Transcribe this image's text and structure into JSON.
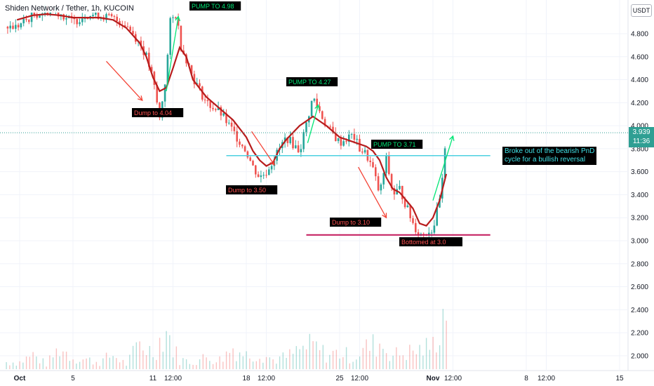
{
  "header": {
    "symbol_title": "Shiden Network / Tether, 1h, KUCOIN"
  },
  "axis": {
    "currency": "USDT"
  },
  "last_price": {
    "value": "3.939",
    "countdown": "11:36"
  },
  "colors": {
    "up": "#26a69a",
    "down": "#ef5350",
    "ma": "#b71c1c",
    "hline_breakout": "#4dd0e1",
    "hline_bottom": "#c2185b",
    "pump_text": "#00e676",
    "dump_text": "#ff5252",
    "last_price": "#2f9f93"
  },
  "annotations": {
    "pump1": "PUMP TO 4.98",
    "pump2": "PUMP TO 4.27",
    "pump3": "PUMP TO 3.71",
    "dump1": "Dump to 4.04",
    "dump2": "Dump to 3.50",
    "dump3": "Dump to 3.10",
    "bottom": "Bottomed at 3.0",
    "breakout_note": "Broke out of the bearish PnD\ncycle for a bullish reversal"
  },
  "chart_data": {
    "type": "line",
    "title": "Shiden Network / Tether, 1h, KUCOIN",
    "ylabel": "USDT",
    "ylim": [
      1.92,
      5.1
    ],
    "y_ticks": [
      "4.800",
      "4.600",
      "4.400",
      "4.200",
      "4.000",
      "3.800",
      "3.600",
      "3.400",
      "3.200",
      "3.000",
      "2.800",
      "2.600",
      "2.400",
      "2.200",
      "2.000"
    ],
    "x_ticks": [
      "Oct",
      "5",
      "11",
      "12:00",
      "18",
      "12:00",
      "25",
      "12:00",
      "Nov",
      "12:00",
      "8",
      "12:00",
      "15"
    ],
    "x_tick_days": [
      0,
      4,
      10,
      11.5,
      17,
      18.5,
      24,
      25.5,
      31,
      32.5,
      38,
      39.5,
      45
    ],
    "series": [
      {
        "kind": "close",
        "x_day": [
          -0.2,
          1,
          2,
          3,
          4,
          5,
          6,
          7,
          8,
          9,
          9.5,
          10,
          10.5,
          11,
          11.3,
          11.8,
          12,
          12.5,
          13,
          14,
          15,
          16,
          17,
          17.5,
          18,
          18.5,
          19,
          19.5,
          20,
          21,
          22,
          23,
          24,
          25,
          25.5,
          26,
          26.5,
          27,
          27.5,
          28,
          28.5,
          29,
          29.5,
          30,
          30.5,
          31,
          31.5,
          31.8,
          32
        ],
        "values": [
          4.86,
          4.96,
          5.0,
          4.98,
          4.9,
          4.97,
          4.96,
          4.93,
          4.88,
          4.72,
          4.6,
          4.4,
          4.06,
          4.46,
          4.9,
          4.98,
          4.72,
          4.58,
          4.42,
          4.2,
          4.12,
          3.95,
          3.78,
          3.64,
          3.55,
          3.6,
          3.7,
          3.8,
          3.9,
          3.78,
          4.25,
          4.0,
          3.85,
          3.92,
          3.8,
          3.75,
          3.62,
          3.4,
          3.71,
          3.4,
          3.45,
          3.3,
          3.15,
          3.05,
          3.08,
          3.1,
          3.35,
          3.6,
          3.94
        ]
      },
      {
        "kind": "moving_average",
        "x_day": [
          -0.2,
          1,
          2,
          3,
          4,
          5,
          6,
          7,
          8,
          9,
          9.5,
          10,
          10.5,
          11,
          11.5,
          12,
          12.5,
          13,
          14,
          15,
          16,
          17,
          17.5,
          18,
          18.5,
          19,
          19.5,
          20,
          21,
          22,
          23,
          24,
          25,
          26,
          26.5,
          27,
          27.5,
          28,
          28.5,
          29,
          29.5,
          30,
          30.5,
          31,
          31.5,
          32
        ],
        "values": [
          4.92,
          4.96,
          4.97,
          4.96,
          4.94,
          4.94,
          4.94,
          4.92,
          4.85,
          4.72,
          4.6,
          4.42,
          4.3,
          4.33,
          4.5,
          4.68,
          4.6,
          4.4,
          4.25,
          4.15,
          4.05,
          3.9,
          3.78,
          3.7,
          3.65,
          3.68,
          3.8,
          3.88,
          4.0,
          4.08,
          4.0,
          3.9,
          3.86,
          3.82,
          3.78,
          3.7,
          3.55,
          3.45,
          3.42,
          3.35,
          3.28,
          3.15,
          3.13,
          3.2,
          3.35,
          3.58
        ]
      }
    ],
    "volume": {
      "x_day": [
        0,
        1,
        2,
        3,
        4,
        5,
        6,
        7,
        8,
        9,
        10,
        11,
        11.5,
        12,
        13,
        14,
        15,
        16,
        17,
        18,
        19,
        20,
        21,
        22,
        23,
        24,
        25,
        26,
        27,
        28,
        29,
        30,
        31,
        31.5,
        32
      ],
      "values": [
        0.15,
        0.3,
        0.1,
        0.45,
        0.25,
        0.2,
        0.15,
        0.3,
        0.1,
        0.55,
        0.35,
        0.85,
        0.45,
        0.2,
        0.15,
        0.25,
        0.2,
        0.45,
        0.3,
        0.35,
        0.2,
        0.25,
        0.4,
        0.5,
        0.3,
        0.35,
        0.25,
        0.45,
        0.55,
        0.3,
        0.35,
        0.4,
        0.5,
        0.9,
        1.4
      ]
    },
    "horizontal_lines": [
      {
        "name": "breakout",
        "y": 3.74,
        "x_day_range": [
          15.5,
          35.3
        ]
      },
      {
        "name": "bottom",
        "y": 3.05,
        "x_day_range": [
          21.5,
          35.3
        ]
      },
      {
        "name": "last_price",
        "y": 3.939,
        "x_day_range": [
          -1,
          47
        ]
      }
    ],
    "arrow_annotations": [
      {
        "name": "dump1",
        "from": [
          6.5,
          4.56
        ],
        "to": [
          9.2,
          4.22
        ]
      },
      {
        "name": "dump2",
        "from": [
          17.4,
          3.95
        ],
        "to": [
          19.1,
          3.66
        ]
      },
      {
        "name": "dump3",
        "from": [
          25.4,
          3.64
        ],
        "to": [
          27.5,
          3.2
        ]
      },
      {
        "name": "pump1",
        "from": [
          11.0,
          4.3
        ],
        "to": [
          11.9,
          4.95
        ]
      },
      {
        "name": "pump2",
        "from": [
          21.6,
          3.85
        ],
        "to": [
          22.4,
          4.18
        ]
      },
      {
        "name": "pump3",
        "from": [
          31.0,
          3.35
        ],
        "to": [
          32.5,
          3.91
        ]
      }
    ]
  }
}
